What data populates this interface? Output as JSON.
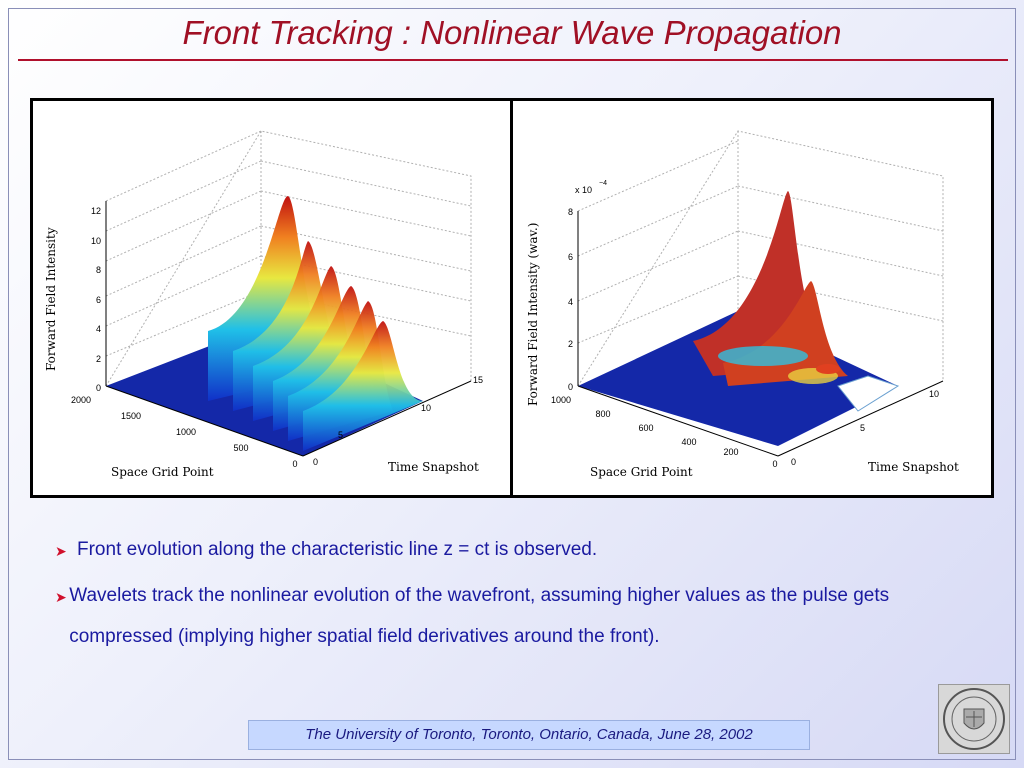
{
  "title": "Front Tracking : Nonlinear Wave Propagation",
  "plots": [
    {
      "zlabel": "Forward Field Intensity",
      "xlabel": "Space Grid Point",
      "ylabel": "Time Snapshot",
      "z_ticks": [
        "12",
        "10",
        "8",
        "6",
        "4",
        "2",
        "0"
      ],
      "x_ticks": [
        "2000",
        "1500",
        "1000",
        "500",
        "0"
      ],
      "y_ticks": [
        "0",
        "5",
        "10",
        "15"
      ]
    },
    {
      "zlabel": "Forward Field Intensity (wav.)",
      "xlabel": "Space Grid Point",
      "ylabel": "Time Snapshot",
      "z_scale": "x 10",
      "z_scale_exp": "−4",
      "z_ticks": [
        "8",
        "6",
        "4",
        "2",
        "0"
      ],
      "x_ticks": [
        "1000",
        "800",
        "600",
        "400",
        "200",
        "0"
      ],
      "y_ticks": [
        "0",
        "5",
        "10"
      ]
    }
  ],
  "bullets": [
    "Front evolution along the characteristic line z = ct is observed.",
    "Wavelets track the nonlinear evolution of the wavefront, assuming higher values as the pulse gets compressed (implying higher spatial field derivatives around the front)."
  ],
  "footer": "The University of Toronto, Toronto, Ontario, Canada, June 28, 2002",
  "colors": {
    "title": "#a01025",
    "bullet_text": "#1a1aa0",
    "bullet_arrow": "#d0102c",
    "footer_bg": "#c6d8ff"
  }
}
